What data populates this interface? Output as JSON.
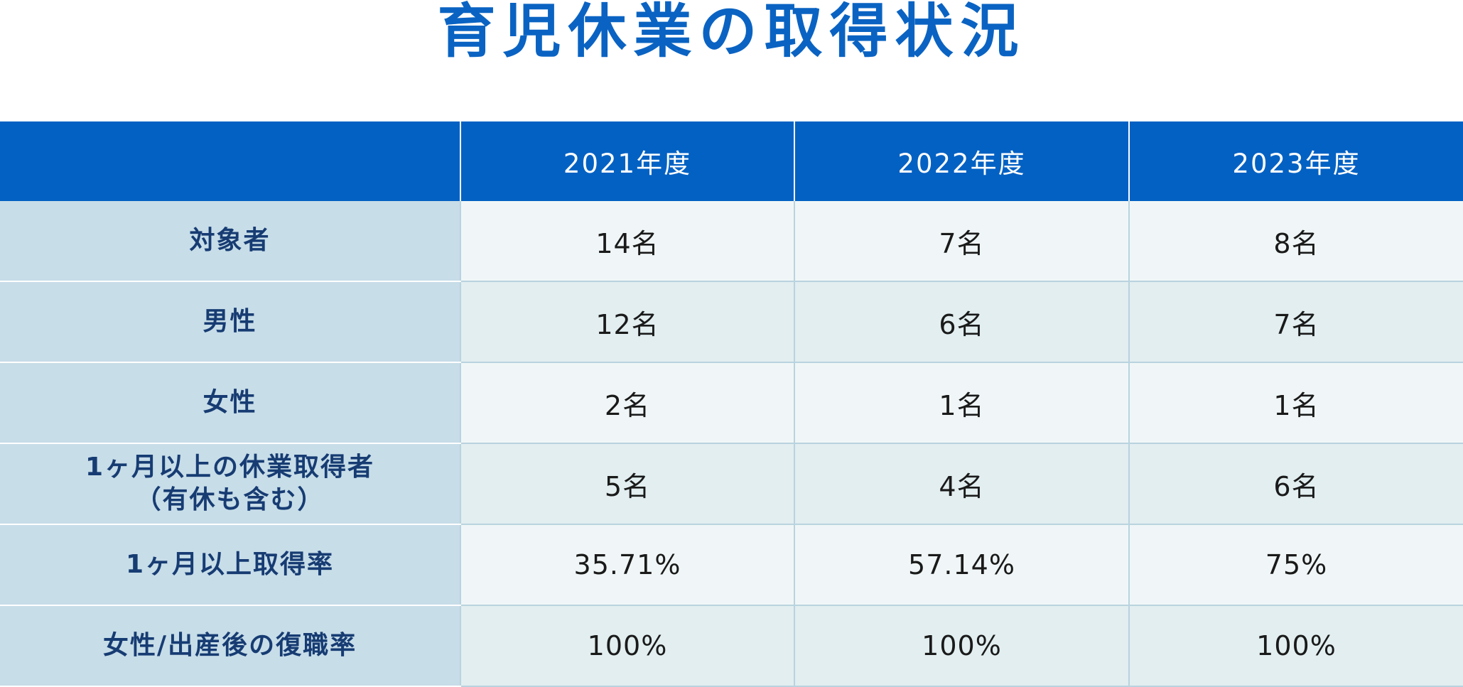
{
  "title": "育児休業の取得状況",
  "table": {
    "headers": [
      "",
      "2021年度",
      "2022年度",
      "2023年度"
    ],
    "rows": [
      {
        "label_lines": [
          "対象者"
        ],
        "values": [
          "14名",
          "7名",
          "8名"
        ]
      },
      {
        "label_lines": [
          "男性"
        ],
        "values": [
          "12名",
          "6名",
          "7名"
        ]
      },
      {
        "label_lines": [
          "女性"
        ],
        "values": [
          "2名",
          "1名",
          "1名"
        ]
      },
      {
        "label_lines": [
          "1ヶ月以上の休業取得者",
          "（有休も含む）"
        ],
        "values": [
          "5名",
          "4名",
          "6名"
        ]
      },
      {
        "label_lines": [
          "1ヶ月以上取得率"
        ],
        "values": [
          "35.71%",
          "57.14%",
          "75%"
        ]
      },
      {
        "label_lines": [
          "女性/出産後の復職率"
        ],
        "values": [
          "100%",
          "100%",
          "100%"
        ]
      }
    ]
  },
  "colors": {
    "title": "#0a63c2",
    "header_bg": "#0361c3",
    "label_bg": "#c7dde8",
    "label_text": "#173c73",
    "row_odd_bg": "#f0f6f7",
    "row_even_bg": "#e2eef0"
  }
}
